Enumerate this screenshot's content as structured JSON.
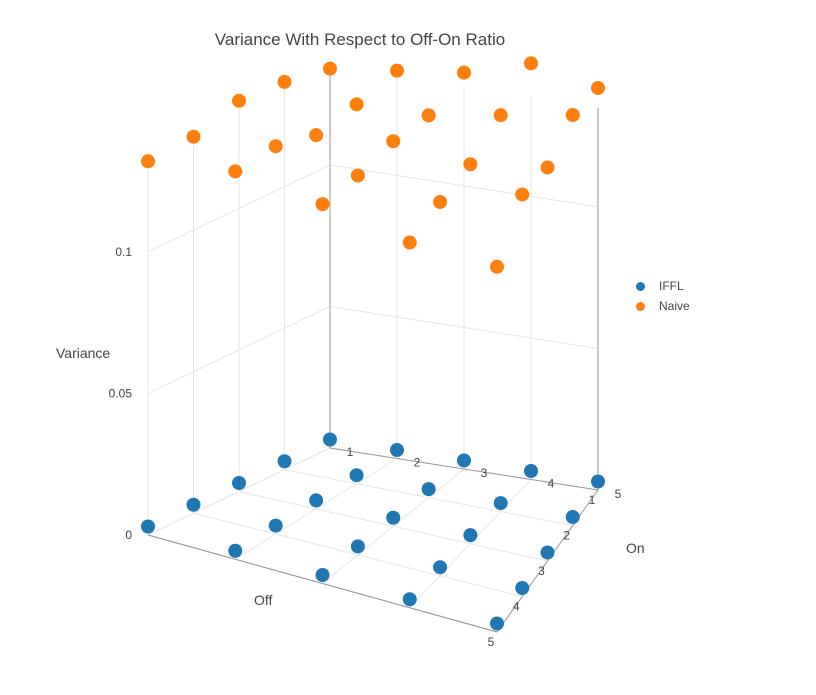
{
  "chart_data": {
    "type": "scatter3d",
    "title": "Variance With Respect to Off-On Ratio",
    "x_title": "Off",
    "y_title": "On",
    "z_title": "Variance",
    "x_ticks": [
      "1",
      "2",
      "3",
      "4",
      "5"
    ],
    "y_ticks": [
      "1",
      "2",
      "3",
      "4",
      "5"
    ],
    "z_ticks": [
      "0",
      "0.05",
      "0.1"
    ],
    "series": [
      {
        "name": "IFFL",
        "color": "#1f77b4",
        "points": [
          {
            "off": 1,
            "on": 1,
            "var": 0.003
          },
          {
            "off": 1,
            "on": 2,
            "var": 0.003
          },
          {
            "off": 1,
            "on": 3,
            "var": 0.003
          },
          {
            "off": 1,
            "on": 4,
            "var": 0.003
          },
          {
            "off": 1,
            "on": 5,
            "var": 0.003
          },
          {
            "off": 2,
            "on": 1,
            "var": 0.003
          },
          {
            "off": 2,
            "on": 2,
            "var": 0.003
          },
          {
            "off": 2,
            "on": 3,
            "var": 0.003
          },
          {
            "off": 2,
            "on": 4,
            "var": 0.003
          },
          {
            "off": 2,
            "on": 5,
            "var": 0.003
          },
          {
            "off": 3,
            "on": 1,
            "var": 0.003
          },
          {
            "off": 3,
            "on": 2,
            "var": 0.003
          },
          {
            "off": 3,
            "on": 3,
            "var": 0.003
          },
          {
            "off": 3,
            "on": 4,
            "var": 0.003
          },
          {
            "off": 3,
            "on": 5,
            "var": 0.003
          },
          {
            "off": 4,
            "on": 1,
            "var": 0.003
          },
          {
            "off": 4,
            "on": 2,
            "var": 0.003
          },
          {
            "off": 4,
            "on": 3,
            "var": 0.003
          },
          {
            "off": 4,
            "on": 4,
            "var": 0.003
          },
          {
            "off": 4,
            "on": 5,
            "var": 0.003
          },
          {
            "off": 5,
            "on": 1,
            "var": 0.003
          },
          {
            "off": 5,
            "on": 2,
            "var": 0.003
          },
          {
            "off": 5,
            "on": 3,
            "var": 0.003
          },
          {
            "off": 5,
            "on": 4,
            "var": 0.003
          },
          {
            "off": 5,
            "on": 5,
            "var": 0.003
          }
        ]
      },
      {
        "name": "Naive",
        "color": "#ff7f0e",
        "points": [
          {
            "off": 1,
            "on": 1,
            "var": 0.134
          },
          {
            "off": 1,
            "on": 2,
            "var": 0.137
          },
          {
            "off": 1,
            "on": 3,
            "var": 0.14
          },
          {
            "off": 1,
            "on": 4,
            "var": 0.147
          },
          {
            "off": 1,
            "on": 5,
            "var": 0.142
          },
          {
            "off": 2,
            "on": 1,
            "var": 0.137
          },
          {
            "off": 2,
            "on": 2,
            "var": 0.134
          },
          {
            "off": 2,
            "on": 3,
            "var": 0.135
          },
          {
            "off": 2,
            "on": 4,
            "var": 0.14
          },
          {
            "off": 2,
            "on": 5,
            "var": 0.145
          },
          {
            "off": 3,
            "on": 1,
            "var": 0.138
          },
          {
            "off": 3,
            "on": 2,
            "var": 0.132
          },
          {
            "off": 3,
            "on": 3,
            "var": 0.136
          },
          {
            "off": 3,
            "on": 4,
            "var": 0.134
          },
          {
            "off": 3,
            "on": 5,
            "var": 0.139
          },
          {
            "off": 4,
            "on": 1,
            "var": 0.133
          },
          {
            "off": 4,
            "on": 2,
            "var": 0.137
          },
          {
            "off": 4,
            "on": 3,
            "var": 0.134
          },
          {
            "off": 4,
            "on": 4,
            "var": 0.132
          },
          {
            "off": 4,
            "on": 5,
            "var": 0.142
          },
          {
            "off": 5,
            "on": 1,
            "var": 0.132
          },
          {
            "off": 5,
            "on": 2,
            "var": 0.137
          },
          {
            "off": 5,
            "on": 3,
            "var": 0.134
          },
          {
            "off": 5,
            "on": 4,
            "var": 0.129
          },
          {
            "off": 5,
            "on": 5,
            "var": 0.129
          }
        ]
      }
    ],
    "legend_position": "right",
    "grid": true
  }
}
